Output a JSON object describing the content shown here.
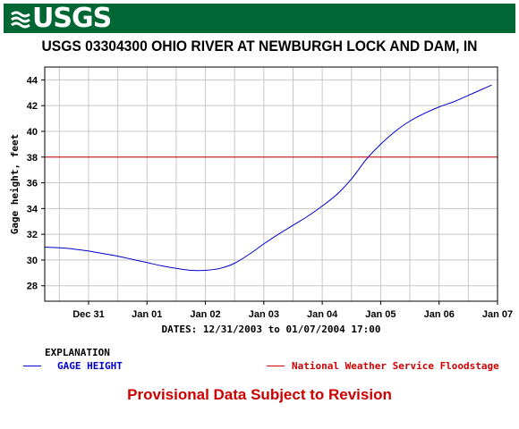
{
  "banner": {
    "logo_text": "USGS"
  },
  "chart_data": {
    "type": "line",
    "title": "USGS 03304300 OHIO RIVER AT NEWBURGH LOCK AND DAM, IN",
    "ylabel": "Gage height, feet",
    "xlabel": "DATES: 12/31/2003 to 01/07/2004 17:00",
    "ylim": [
      26.8,
      45.0
    ],
    "xlim": [
      -0.75,
      7.0
    ],
    "yticks": [
      28,
      30,
      32,
      34,
      36,
      38,
      40,
      42,
      44
    ],
    "x_tick_labels": [
      {
        "x": 0,
        "label": "Dec 31"
      },
      {
        "x": 1,
        "label": "Jan 01"
      },
      {
        "x": 2,
        "label": "Jan 02"
      },
      {
        "x": 3,
        "label": "Jan 03"
      },
      {
        "x": 4,
        "label": "Jan 04"
      },
      {
        "x": 5,
        "label": "Jan 05"
      },
      {
        "x": 6,
        "label": "Jan 06"
      },
      {
        "x": 7,
        "label": "Jan 07"
      }
    ],
    "grid": true,
    "colors": {
      "series": "#0000cc",
      "floodstage": "#cc0000",
      "grid": "#c8c8c8",
      "banner": "#006633",
      "provisional": "#cc0000"
    },
    "series": [
      {
        "name": "GAGE HEIGHT",
        "x": [
          -0.75,
          -0.5,
          -0.25,
          0.0,
          0.25,
          0.5,
          0.75,
          1.0,
          1.25,
          1.5,
          1.75,
          2.0,
          2.25,
          2.5,
          2.75,
          3.0,
          3.25,
          3.5,
          3.75,
          4.0,
          4.25,
          4.5,
          4.75,
          5.0,
          5.25,
          5.5,
          5.75,
          6.0,
          6.25,
          6.5,
          6.75,
          6.9
        ],
        "y": [
          31.0,
          30.95,
          30.85,
          30.7,
          30.5,
          30.3,
          30.05,
          29.8,
          29.55,
          29.35,
          29.2,
          29.2,
          29.35,
          29.75,
          30.45,
          31.25,
          32.0,
          32.7,
          33.4,
          34.2,
          35.1,
          36.3,
          37.8,
          39.0,
          40.0,
          40.8,
          41.4,
          41.9,
          42.3,
          42.8,
          43.3,
          43.6
        ]
      }
    ],
    "floodstage": {
      "label": "National Weather Service Floodstage",
      "value": 38
    }
  },
  "legend": {
    "heading": "EXPLANATION",
    "gage_label": "GAGE HEIGHT",
    "floodstage_label": "National Weather Service Floodstage"
  },
  "footer": {
    "provisional": "Provisional Data Subject to Revision"
  }
}
